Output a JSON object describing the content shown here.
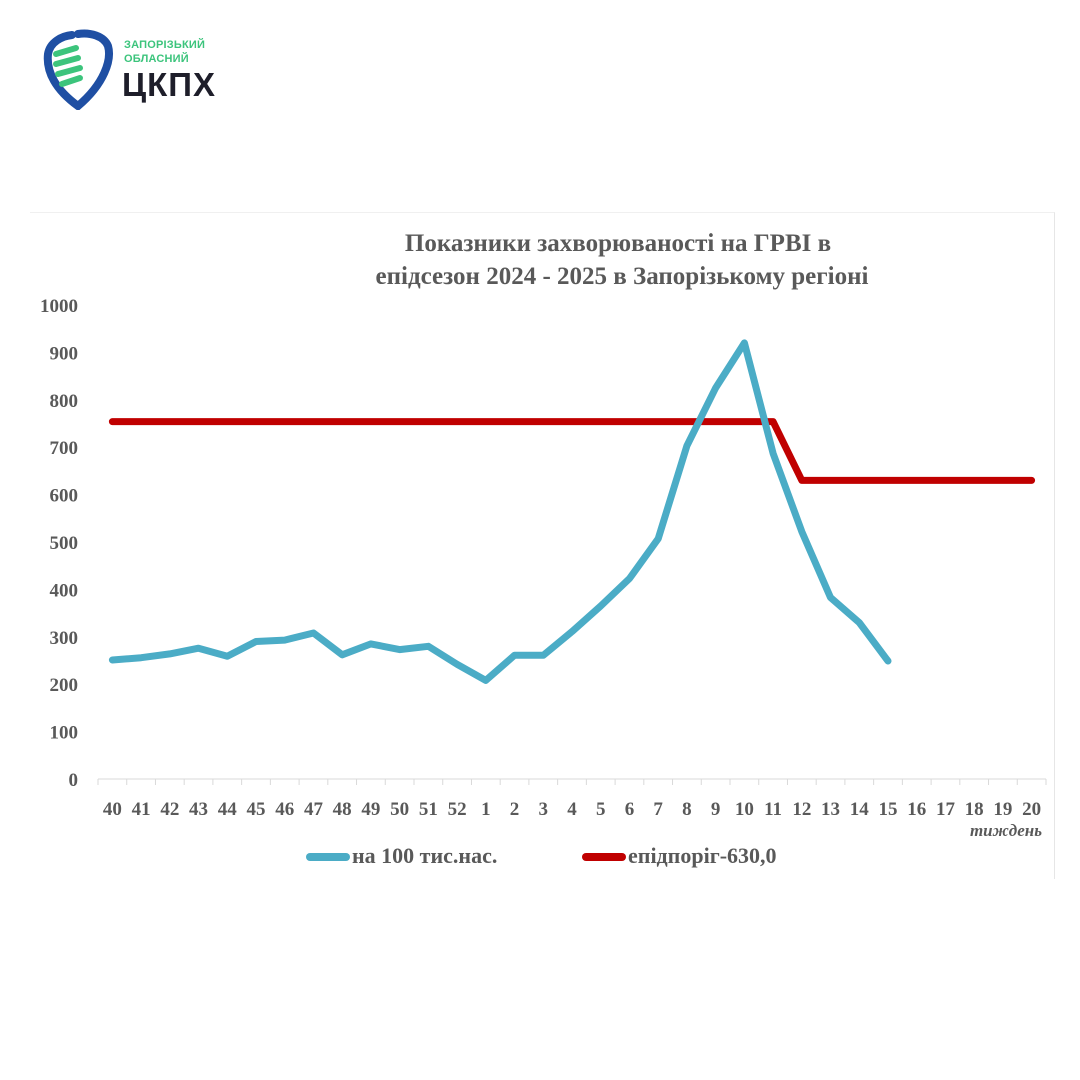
{
  "logo": {
    "line1": "ЗАПОРІЗЬКИЙ",
    "line2": "ОБЛАСНИЙ",
    "name": "ЦКПХ",
    "colors": {
      "blue": "#1f4fa3",
      "green": "#3cc47c",
      "text": "#1e1e2a"
    }
  },
  "chart_data": {
    "type": "line",
    "title": [
      "Показники захворюваності на ГРВІ в",
      "епідсезон 2024 - 2025 в Запорізькому регіоні"
    ],
    "xlabel": "тиждень",
    "ylabel": "",
    "ylim": [
      0,
      1000
    ],
    "yticks": [
      0,
      100,
      200,
      300,
      400,
      500,
      600,
      700,
      800,
      900,
      1000
    ],
    "categories": [
      "40",
      "41",
      "42",
      "43",
      "44",
      "45",
      "46",
      "47",
      "48",
      "49",
      "50",
      "51",
      "52",
      "1",
      "2",
      "3",
      "4",
      "5",
      "6",
      "7",
      "8",
      "9",
      "10",
      "11",
      "12",
      "13",
      "14",
      "15",
      "16",
      "17",
      "18",
      "19",
      "20"
    ],
    "series": [
      {
        "name": "на 100 тис.нас.",
        "color": "#4bacc6",
        "values": [
          251,
          256,
          264,
          276,
          259,
          290,
          293,
          308,
          262,
          285,
          273,
          280,
          242,
          208,
          261,
          261,
          311,
          365,
          423,
          507,
          703,
          825,
          920,
          687,
          522,
          383,
          330,
          249,
          null,
          null,
          null,
          null,
          null
        ]
      },
      {
        "name": "епідпоріг-630,0",
        "color": "#c00000",
        "values": [
          754,
          754,
          754,
          754,
          754,
          754,
          754,
          754,
          754,
          754,
          754,
          754,
          754,
          754,
          754,
          754,
          754,
          754,
          754,
          754,
          754,
          754,
          754,
          754,
          630,
          630,
          630,
          630,
          630,
          630,
          630,
          630,
          630
        ]
      }
    ],
    "grid": false,
    "legend_position": "bottom"
  }
}
